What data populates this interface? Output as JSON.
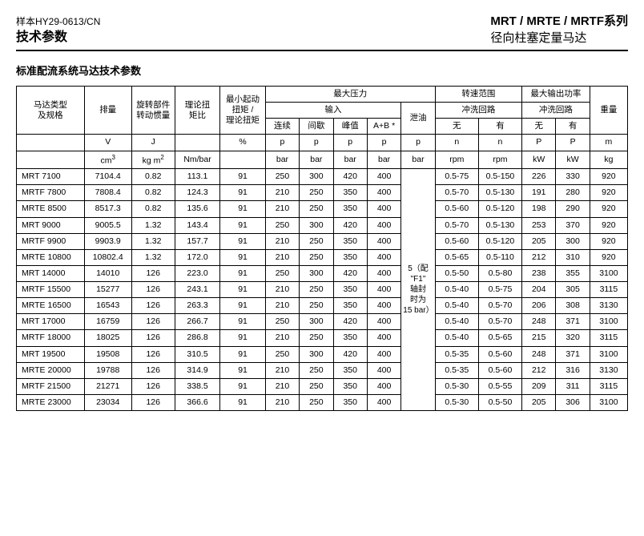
{
  "header": {
    "doc_code": "样本HY29-0613/CN",
    "title_cn": "技术参数",
    "series": "MRT / MRTE / MRTF系列",
    "series_sub": "径向柱塞定量马达"
  },
  "section_title": "标准配流系统马达技术参数",
  "table": {
    "hdr": {
      "model": "马达类型\n及规格",
      "disp": "排量",
      "inertia": "旋转部件\n转动惯量",
      "torque_ratio": "理论扭\n矩比",
      "min_start": "最小起动\n扭矩 /\n理论扭矩",
      "max_pressure": "最大压力",
      "speed_range": "转速范围",
      "max_power": "最大输出功率",
      "weight": "重量",
      "input": "输入",
      "flush_loop": "冲洗回路",
      "cont": "连续",
      "inter": "间歇",
      "peak": "峰值",
      "ab": "A+B *",
      "drain": "泄油",
      "no": "无",
      "yes": "有",
      "sym_V": "V",
      "sym_J": "J",
      "sym_pct": "%",
      "sym_p": "p",
      "sym_n": "n",
      "sym_P": "P",
      "sym_m": "m",
      "u_cm3": "cm",
      "u_cm3_sup": "3",
      "u_kgm2": "kg m",
      "u_kgm2_sup": "2",
      "u_nmbar": "Nm/bar",
      "u_bar": "bar",
      "u_rpm": "rpm",
      "u_kw": "kW",
      "u_kg": "kg"
    },
    "drain_note": "5（配\n\"F1\"\n轴封\n时为\n15 bar）",
    "rows": [
      {
        "model": "MRT 7100",
        "v": "7104.4",
        "j": "0.82",
        "nm": "113.1",
        "pct": "91",
        "p1": "250",
        "p2": "300",
        "p3": "420",
        "p4": "400",
        "n1": "0.5-75",
        "n2": "0.5-150",
        "pw1": "226",
        "pw2": "330",
        "m": "920"
      },
      {
        "model": "MRTF 7800",
        "v": "7808.4",
        "j": "0.82",
        "nm": "124.3",
        "pct": "91",
        "p1": "210",
        "p2": "250",
        "p3": "350",
        "p4": "400",
        "n1": "0.5-70",
        "n2": "0.5-130",
        "pw1": "191",
        "pw2": "280",
        "m": "920"
      },
      {
        "model": "MRTE 8500",
        "v": "8517.3",
        "j": "0.82",
        "nm": "135.6",
        "pct": "91",
        "p1": "210",
        "p2": "250",
        "p3": "350",
        "p4": "400",
        "n1": "0.5-60",
        "n2": "0.5-120",
        "pw1": "198",
        "pw2": "290",
        "m": "920"
      },
      {
        "model": "MRT 9000",
        "v": "9005.5",
        "j": "1.32",
        "nm": "143.4",
        "pct": "91",
        "p1": "250",
        "p2": "300",
        "p3": "420",
        "p4": "400",
        "n1": "0.5-70",
        "n2": "0.5-130",
        "pw1": "253",
        "pw2": "370",
        "m": "920"
      },
      {
        "model": "MRTF 9900",
        "v": "9903.9",
        "j": "1.32",
        "nm": "157.7",
        "pct": "91",
        "p1": "210",
        "p2": "250",
        "p3": "350",
        "p4": "400",
        "n1": "0.5-60",
        "n2": "0.5-120",
        "pw1": "205",
        "pw2": "300",
        "m": "920"
      },
      {
        "model": "MRTE 10800",
        "v": "10802.4",
        "j": "1.32",
        "nm": "172.0",
        "pct": "91",
        "p1": "210",
        "p2": "250",
        "p3": "350",
        "p4": "400",
        "n1": "0.5-65",
        "n2": "0.5-110",
        "pw1": "212",
        "pw2": "310",
        "m": "920"
      },
      {
        "model": "MRT 14000",
        "v": "14010",
        "j": "126",
        "nm": "223.0",
        "pct": "91",
        "p1": "250",
        "p2": "300",
        "p3": "420",
        "p4": "400",
        "n1": "0.5-50",
        "n2": "0.5-80",
        "pw1": "238",
        "pw2": "355",
        "m": "3100"
      },
      {
        "model": "MRTF 15500",
        "v": "15277",
        "j": "126",
        "nm": "243.1",
        "pct": "91",
        "p1": "210",
        "p2": "250",
        "p3": "350",
        "p4": "400",
        "n1": "0.5-40",
        "n2": "0.5-75",
        "pw1": "204",
        "pw2": "305",
        "m": "3115"
      },
      {
        "model": "MRTE 16500",
        "v": "16543",
        "j": "126",
        "nm": "263.3",
        "pct": "91",
        "p1": "210",
        "p2": "250",
        "p3": "350",
        "p4": "400",
        "n1": "0.5-40",
        "n2": "0.5-70",
        "pw1": "206",
        "pw2": "308",
        "m": "3130"
      },
      {
        "model": "MRT 17000",
        "v": "16759",
        "j": "126",
        "nm": "266.7",
        "pct": "91",
        "p1": "250",
        "p2": "300",
        "p3": "420",
        "p4": "400",
        "n1": "0.5-40",
        "n2": "0.5-70",
        "pw1": "248",
        "pw2": "371",
        "m": "3100"
      },
      {
        "model": "MRTF 18000",
        "v": "18025",
        "j": "126",
        "nm": "286.8",
        "pct": "91",
        "p1": "210",
        "p2": "250",
        "p3": "350",
        "p4": "400",
        "n1": "0.5-40",
        "n2": "0.5-65",
        "pw1": "215",
        "pw2": "320",
        "m": "3115"
      },
      {
        "model": "MRT 19500",
        "v": "19508",
        "j": "126",
        "nm": "310.5",
        "pct": "91",
        "p1": "250",
        "p2": "300",
        "p3": "420",
        "p4": "400",
        "n1": "0.5-35",
        "n2": "0.5-60",
        "pw1": "248",
        "pw2": "371",
        "m": "3100"
      },
      {
        "model": "MRTE 20000",
        "v": "19788",
        "j": "126",
        "nm": "314.9",
        "pct": "91",
        "p1": "210",
        "p2": "250",
        "p3": "350",
        "p4": "400",
        "n1": "0.5-35",
        "n2": "0.5-60",
        "pw1": "212",
        "pw2": "316",
        "m": "3130"
      },
      {
        "model": "MRTF 21500",
        "v": "21271",
        "j": "126",
        "nm": "338.5",
        "pct": "91",
        "p1": "210",
        "p2": "250",
        "p3": "350",
        "p4": "400",
        "n1": "0.5-30",
        "n2": "0.5-55",
        "pw1": "209",
        "pw2": "311",
        "m": "3115"
      },
      {
        "model": "MRTE 23000",
        "v": "23034",
        "j": "126",
        "nm": "366.6",
        "pct": "91",
        "p1": "210",
        "p2": "250",
        "p3": "350",
        "p4": "400",
        "n1": "0.5-30",
        "n2": "0.5-50",
        "pw1": "205",
        "pw2": "306",
        "m": "3100"
      }
    ]
  }
}
